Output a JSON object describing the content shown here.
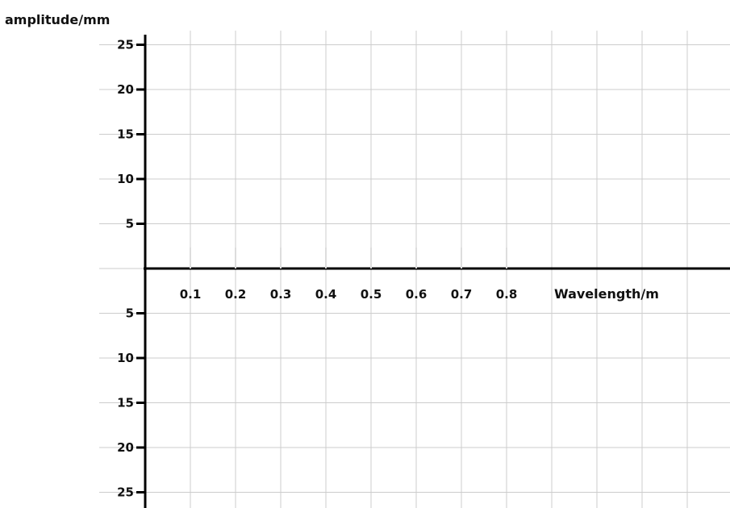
{
  "chart_data": {
    "type": "line",
    "title": "",
    "ylabel": "amplitude/mm",
    "xlabel": "Wavelength/m",
    "x_ticks": [
      "0.1",
      "0.2",
      "0.3",
      "0.4",
      "0.5",
      "0.6",
      "0.7",
      "0.8"
    ],
    "y_ticks_upper": [
      "5",
      "10",
      "15",
      "20",
      "25"
    ],
    "y_ticks_lower": [
      "5",
      "10",
      "15",
      "20",
      "25"
    ],
    "x_tick_values": [
      0.1,
      0.2,
      0.3,
      0.4,
      0.5,
      0.6,
      0.7,
      0.8
    ],
    "y_tick_values_upper": [
      5,
      10,
      15,
      20,
      25
    ],
    "y_tick_values_lower": [
      -5,
      -10,
      -15,
      -20,
      -25
    ],
    "xlim": [
      0,
      1.3
    ],
    "ylim": [
      -26,
      27
    ],
    "series": [],
    "grid": true,
    "colors": {
      "grid": "#cccccc",
      "axis": "#000000",
      "text": "#111111"
    }
  }
}
